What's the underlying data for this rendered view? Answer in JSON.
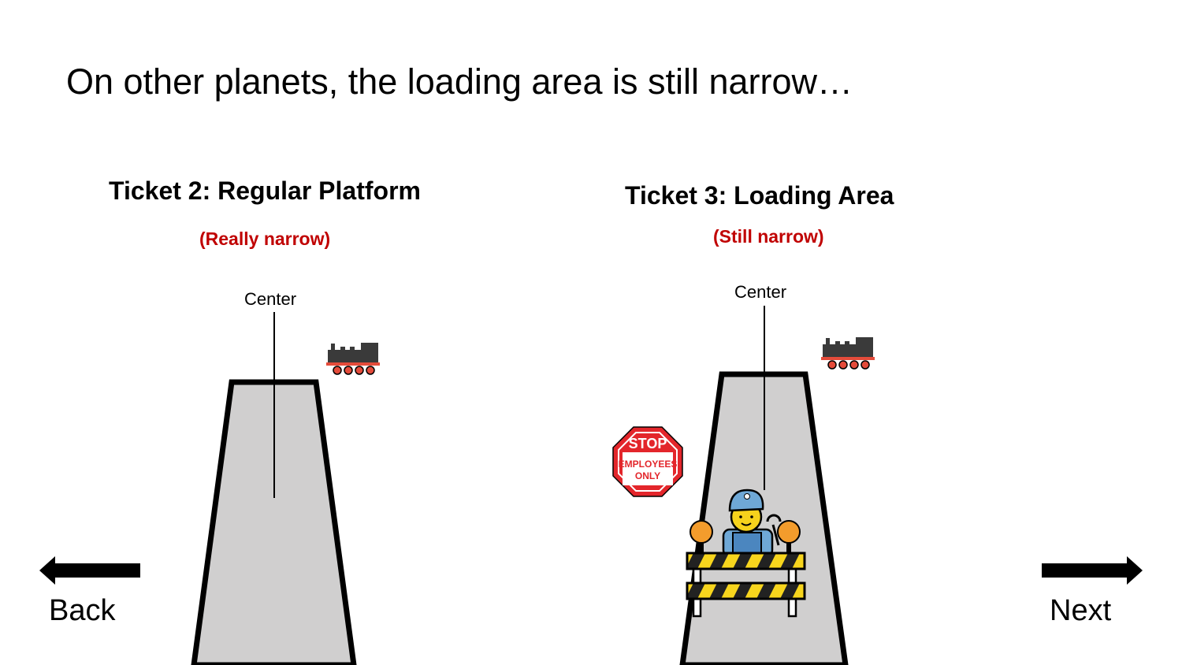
{
  "slide": {
    "title": "On other planets, the loading area is still narrow…"
  },
  "left_panel": {
    "heading": "Ticket 2: Regular Platform",
    "subtitle": "(Really narrow)",
    "center_label": "Center"
  },
  "right_panel": {
    "heading": "Ticket 3: Loading Area",
    "subtitle": "(Still narrow)",
    "center_label": "Center",
    "sign": {
      "top": "STOP",
      "line1": "EMPLOYEES",
      "line2": "ONLY"
    }
  },
  "nav": {
    "back_label": "Back",
    "next_label": "Next"
  },
  "colors": {
    "platform_fill": "#d0cfcf",
    "accent_red": "#c00000",
    "sign_red": "#e3262b",
    "barrier_yellow": "#f7d51d",
    "lamp_orange": "#f39c2c"
  }
}
